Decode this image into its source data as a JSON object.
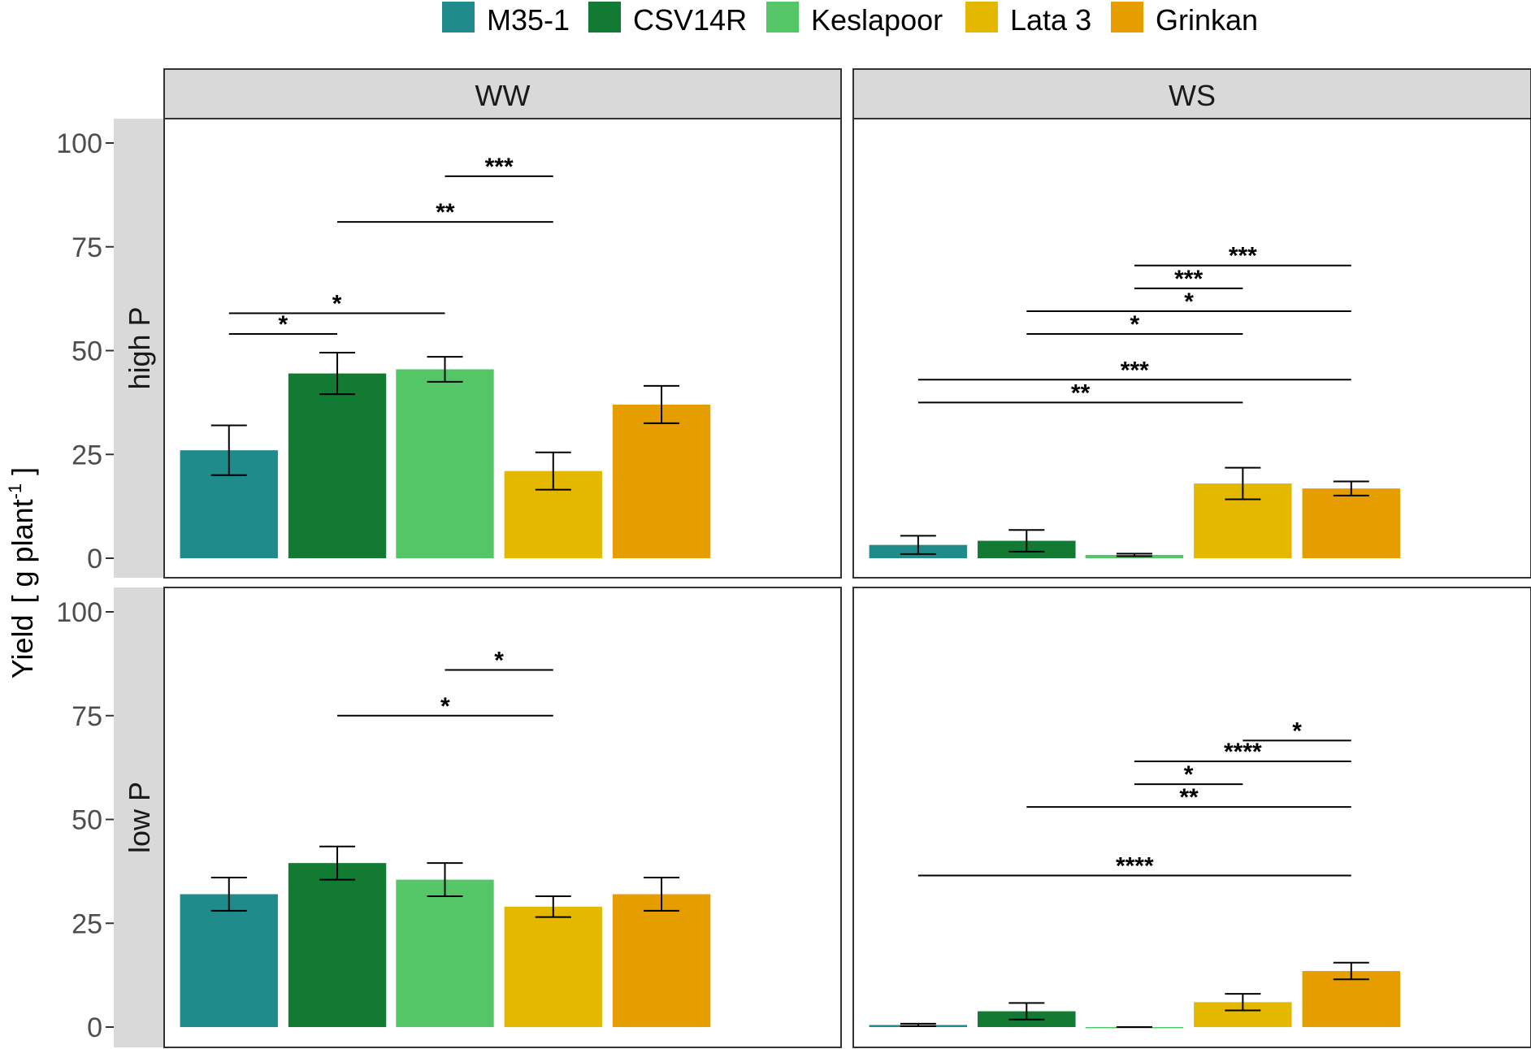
{
  "chart_data": {
    "type": "bar",
    "ylabel_main": "Yield",
    "ylabel_unit_open": "[ g plant",
    "ylabel_unit_exp": "-1",
    "ylabel_unit_close": " ]",
    "xlabel": "",
    "ylim": [
      0,
      100
    ],
    "yticks": [
      0,
      25,
      50,
      75,
      100
    ],
    "ytick_labels": [
      "0",
      "25",
      "50",
      "75",
      "100"
    ],
    "legend": {
      "position": "top",
      "entries": [
        {
          "name": "M35-1",
          "color": "#218b8c"
        },
        {
          "name": "CSV14R",
          "color": "#137a33"
        },
        {
          "name": "Keslapoor",
          "color": "#55c668"
        },
        {
          "name": "Lata 3",
          "color": "#e5b800"
        },
        {
          "name": "Grinkan",
          "color": "#e59d00"
        }
      ]
    },
    "columns": [
      "WW",
      "WS"
    ],
    "rows": [
      "high P",
      "low P"
    ],
    "categories": [
      "M35-1",
      "CSV14R",
      "Keslapoor",
      "Lata 3",
      "Grinkan"
    ],
    "panels": [
      {
        "row": "high P",
        "col": "WW",
        "values": [
          26,
          44.5,
          45.5,
          21,
          37
        ],
        "errors": [
          6,
          5,
          3,
          4.5,
          4.5
        ],
        "significance": [
          {
            "from": "M35-1",
            "to": "CSV14R",
            "y": 54,
            "label": "*"
          },
          {
            "from": "M35-1",
            "to": "Keslapoor",
            "y": 59,
            "label": "*"
          },
          {
            "from": "CSV14R",
            "to": "Lata 3",
            "y": 81,
            "label": "**"
          },
          {
            "from": "Keslapoor",
            "to": "Lata 3",
            "y": 92,
            "label": "***"
          }
        ]
      },
      {
        "row": "high P",
        "col": "WS",
        "values": [
          3.2,
          4.2,
          0.8,
          18,
          16.8
        ],
        "errors": [
          2.2,
          2.6,
          0.3,
          3.8,
          1.7
        ],
        "significance": [
          {
            "from": "M35-1",
            "to": "Lata 3",
            "y": 37.5,
            "label": "**"
          },
          {
            "from": "M35-1",
            "to": "Grinkan",
            "y": 43,
            "label": "***"
          },
          {
            "from": "CSV14R",
            "to": "Lata 3",
            "y": 54,
            "label": "*"
          },
          {
            "from": "CSV14R",
            "to": "Grinkan",
            "y": 59.5,
            "label": "*"
          },
          {
            "from": "Keslapoor",
            "to": "Lata 3",
            "y": 65,
            "label": "***"
          },
          {
            "from": "Keslapoor",
            "to": "Grinkan",
            "y": 70.5,
            "label": "***"
          }
        ]
      },
      {
        "row": "low P",
        "col": "WW",
        "values": [
          32,
          39.5,
          35.5,
          29,
          32
        ],
        "errors": [
          4,
          4,
          4,
          2.5,
          4
        ],
        "significance": [
          {
            "from": "CSV14R",
            "to": "Lata 3",
            "y": 75,
            "label": "*"
          },
          {
            "from": "Keslapoor",
            "to": "Lata 3",
            "y": 86,
            "label": "*"
          }
        ]
      },
      {
        "row": "low P",
        "col": "WS",
        "values": [
          0.5,
          3.8,
          0,
          6,
          13.5
        ],
        "errors": [
          0.3,
          2,
          0,
          2,
          2
        ],
        "significance": [
          {
            "from": "M35-1",
            "to": "Grinkan",
            "y": 36.5,
            "label": "****"
          },
          {
            "from": "CSV14R",
            "to": "Grinkan",
            "y": 53,
            "label": "**"
          },
          {
            "from": "Keslapoor",
            "to": "Lata 3",
            "y": 58.5,
            "label": "*"
          },
          {
            "from": "Keslapoor",
            "to": "Grinkan",
            "y": 64,
            "label": "****"
          },
          {
            "from": "Lata 3",
            "to": "Grinkan",
            "y": 69,
            "label": "*"
          }
        ]
      }
    ]
  }
}
